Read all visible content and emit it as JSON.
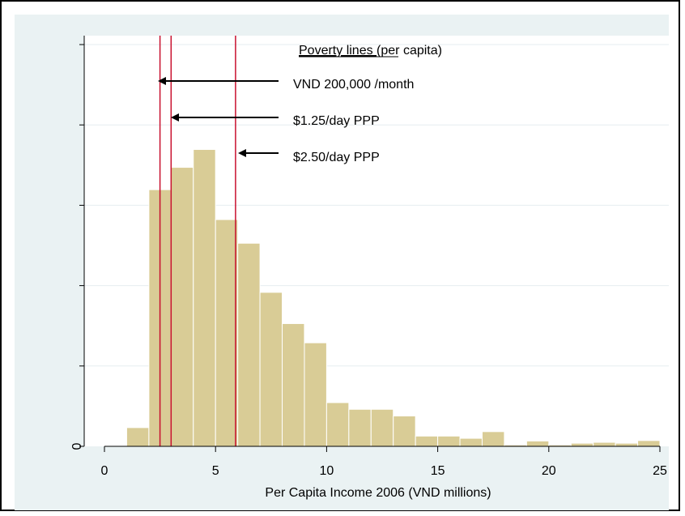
{
  "chart_data": {
    "type": "bar",
    "xlabel": "Per Capita Income 2006 (VND millions)",
    "ylabel": "",
    "xlim": [
      0,
      25
    ],
    "x_ticks": [
      "0",
      "5",
      "10",
      "15",
      "20",
      "25"
    ],
    "y_tick_labels": [
      "0"
    ],
    "ylim": [
      0,
      0.092
    ],
    "bin_width": 1,
    "bins": [
      {
        "x0": 1,
        "value": 0.0042
      },
      {
        "x0": 2,
        "value": 0.0575
      },
      {
        "x0": 3,
        "value": 0.0625
      },
      {
        "x0": 4,
        "value": 0.0665
      },
      {
        "x0": 5,
        "value": 0.0508
      },
      {
        "x0": 6,
        "value": 0.0455
      },
      {
        "x0": 7,
        "value": 0.0345
      },
      {
        "x0": 8,
        "value": 0.0275
      },
      {
        "x0": 9,
        "value": 0.0232
      },
      {
        "x0": 10,
        "value": 0.0098
      },
      {
        "x0": 11,
        "value": 0.0083
      },
      {
        "x0": 12,
        "value": 0.0083
      },
      {
        "x0": 13,
        "value": 0.0068
      },
      {
        "x0": 14,
        "value": 0.0023
      },
      {
        "x0": 15,
        "value": 0.0023
      },
      {
        "x0": 16,
        "value": 0.0018
      },
      {
        "x0": 17,
        "value": 0.0033
      },
      {
        "x0": 18,
        "value": 0.0003
      },
      {
        "x0": 19,
        "value": 0.0012
      },
      {
        "x0": 20,
        "value": 0.0003
      },
      {
        "x0": 21,
        "value": 0.0007
      },
      {
        "x0": 22,
        "value": 0.0009
      },
      {
        "x0": 23,
        "value": 0.0007
      },
      {
        "x0": 24,
        "value": 0.0013
      }
    ],
    "poverty_lines": [
      2.5,
      3.0,
      5.9
    ],
    "grid": true,
    "colors": {
      "bar_fill": "#d9cc96",
      "bar_stroke": "#ffffff",
      "plot_bg": "#ffffff",
      "outer_bg": "#eaf2f3",
      "grid": "#e6edf0",
      "poverty_line": "#c8102e"
    }
  },
  "annotations": {
    "heading_underlined": "Poverty lines ",
    "heading_rest": "(per capita)",
    "line1": "VND 200,000 /month",
    "line2": "$1.25/day PPP",
    "line3": "$2.50/day PPP"
  }
}
